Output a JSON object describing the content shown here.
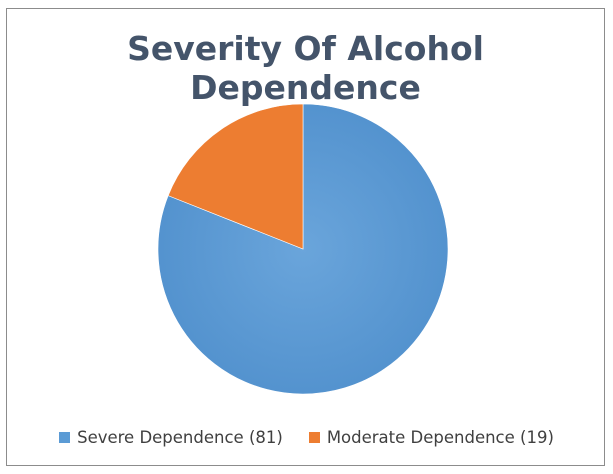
{
  "chart_data": {
    "type": "pie",
    "title": "Severity Of Alcohol Dependence",
    "legend_position": "bottom",
    "slices": [
      {
        "label": "Severe Dependence (81)",
        "value": 81,
        "color": "#5b9bd5"
      },
      {
        "label": "Moderate Dependence (19)",
        "value": 19,
        "color": "#ed7d31"
      }
    ]
  }
}
